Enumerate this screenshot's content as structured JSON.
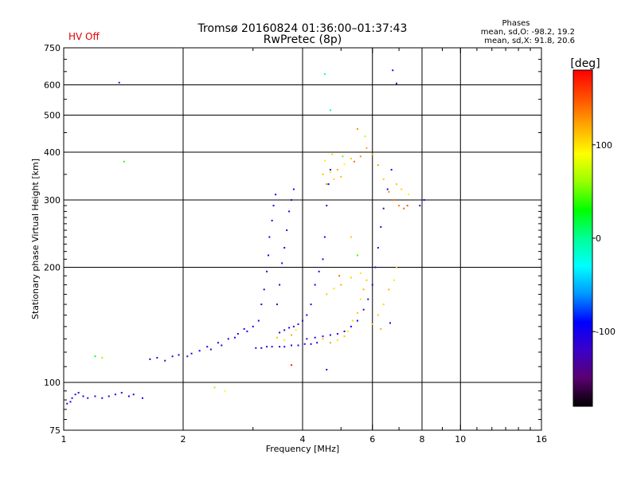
{
  "chart_data": {
    "type": "scatter",
    "title": "Tromsø 20160824 01:36:00–01:37:43",
    "subtitle": "RwPretec (8p)",
    "status_text": "HV Off",
    "status_color": "#e00000",
    "stats": {
      "heading": "Phases",
      "line1": "mean, sd,O: -98.2, 19.2",
      "line2": "mean, sd,X:  91.8, 20.6"
    },
    "xlabel": "Frequency [MHz]",
    "ylabel": "Stationary phase Virtual Height [km]",
    "x_scale": "log",
    "y_scale": "log",
    "xlim": [
      1,
      16
    ],
    "ylim": [
      75,
      750
    ],
    "grid": true,
    "x_ticks": [
      1,
      2,
      4,
      6,
      8,
      10,
      16
    ],
    "y_ticks": [
      75,
      100,
      200,
      300,
      400,
      500,
      600,
      750
    ],
    "colorbar": {
      "label": "[deg]",
      "range": [
        -180,
        180
      ],
      "ticks": [
        100,
        0,
        -100
      ],
      "colormap": [
        "#000000",
        "#5a0070",
        "#3c00c8",
        "#0000ff",
        "#0096ff",
        "#00ffff",
        "#00ff96",
        "#00ff00",
        "#96ff00",
        "#ffff00",
        "#ffaa00",
        "#ff5000",
        "#ff0000"
      ]
    },
    "points": [
      [
        1.02,
        88,
        -110
      ],
      [
        1.04,
        89,
        -100
      ],
      [
        1.05,
        91,
        -105
      ],
      [
        1.07,
        93,
        -120
      ],
      [
        1.09,
        94,
        -115
      ],
      [
        1.12,
        92,
        -95
      ],
      [
        1.15,
        91,
        -108
      ],
      [
        1.2,
        92,
        -112
      ],
      [
        1.25,
        91,
        -100
      ],
      [
        1.3,
        92,
        -118
      ],
      [
        1.35,
        93,
        -105
      ],
      [
        1.4,
        94,
        -110
      ],
      [
        1.46,
        92,
        -95
      ],
      [
        1.5,
        93,
        -120
      ],
      [
        1.58,
        91,
        -102
      ],
      [
        1.2,
        117,
        20
      ],
      [
        1.25,
        116,
        60
      ],
      [
        1.38,
        608,
        -110
      ],
      [
        1.42,
        378,
        40
      ],
      [
        1.65,
        115,
        -110
      ],
      [
        1.72,
        116,
        -100
      ],
      [
        1.8,
        114,
        -115
      ],
      [
        1.88,
        117,
        -105
      ],
      [
        1.95,
        118,
        -98
      ],
      [
        2.05,
        117,
        -112
      ],
      [
        2.1,
        119,
        -108
      ],
      [
        2.2,
        121,
        -100
      ],
      [
        2.3,
        124,
        -95
      ],
      [
        2.35,
        122,
        -115
      ],
      [
        2.45,
        127,
        -105
      ],
      [
        2.5,
        125,
        -110
      ],
      [
        2.6,
        130,
        -100
      ],
      [
        2.7,
        131,
        -90
      ],
      [
        2.75,
        134,
        -120
      ],
      [
        2.85,
        138,
        -105
      ],
      [
        2.9,
        136,
        -100
      ],
      [
        3.0,
        140,
        -95
      ],
      [
        3.05,
        123,
        -115
      ],
      [
        3.15,
        123,
        -110
      ],
      [
        3.25,
        124,
        -120
      ],
      [
        3.35,
        124,
        -105
      ],
      [
        3.5,
        124,
        -112
      ],
      [
        3.6,
        124,
        -108
      ],
      [
        3.75,
        125,
        -110
      ],
      [
        3.9,
        125,
        -100
      ],
      [
        4.05,
        126,
        -115
      ],
      [
        4.2,
        126,
        -112
      ],
      [
        4.35,
        127,
        -105
      ],
      [
        2.4,
        97,
        60
      ],
      [
        2.55,
        95,
        90
      ],
      [
        3.75,
        111,
        170
      ],
      [
        4.6,
        108,
        -110
      ],
      [
        3.1,
        145,
        -100
      ],
      [
        3.15,
        160,
        -105
      ],
      [
        3.2,
        175,
        -110
      ],
      [
        3.25,
        195,
        -120
      ],
      [
        3.28,
        215,
        -95
      ],
      [
        3.3,
        240,
        -110
      ],
      [
        3.35,
        265,
        -105
      ],
      [
        3.38,
        290,
        -112
      ],
      [
        3.42,
        310,
        -100
      ],
      [
        3.45,
        160,
        -115
      ],
      [
        3.5,
        180,
        -108
      ],
      [
        3.55,
        205,
        -105
      ],
      [
        3.6,
        225,
        -95
      ],
      [
        3.65,
        250,
        -110
      ],
      [
        3.7,
        280,
        -102
      ],
      [
        3.75,
        300,
        -115
      ],
      [
        3.8,
        320,
        -108
      ],
      [
        3.5,
        135,
        -110
      ],
      [
        3.6,
        137,
        -105
      ],
      [
        3.7,
        139,
        -100
      ],
      [
        3.8,
        140,
        -115
      ],
      [
        3.9,
        142,
        -108
      ],
      [
        4.0,
        145,
        -110
      ],
      [
        4.1,
        150,
        -100
      ],
      [
        4.2,
        160,
        -105
      ],
      [
        4.3,
        180,
        -95
      ],
      [
        4.4,
        195,
        -110
      ],
      [
        4.5,
        210,
        -112
      ],
      [
        4.55,
        240,
        -105
      ],
      [
        4.6,
        290,
        -110
      ],
      [
        4.65,
        330,
        -95
      ],
      [
        4.7,
        360,
        -108
      ],
      [
        4.1,
        130,
        -112
      ],
      [
        4.3,
        131,
        -105
      ],
      [
        4.5,
        132,
        -110
      ],
      [
        4.7,
        133,
        -100
      ],
      [
        4.9,
        134,
        -108
      ],
      [
        5.1,
        136,
        -112
      ],
      [
        5.3,
        140,
        -105
      ],
      [
        5.5,
        145,
        -100
      ],
      [
        5.7,
        155,
        -110
      ],
      [
        5.85,
        165,
        -108
      ],
      [
        6.0,
        180,
        -105
      ],
      [
        6.1,
        200,
        -100
      ],
      [
        6.2,
        225,
        -112
      ],
      [
        6.3,
        255,
        -110
      ],
      [
        6.4,
        285,
        -105
      ],
      [
        6.55,
        320,
        -98
      ],
      [
        6.7,
        360,
        -108
      ],
      [
        3.45,
        131,
        110
      ],
      [
        3.6,
        129,
        100
      ],
      [
        3.75,
        133,
        120
      ],
      [
        3.85,
        137,
        95
      ],
      [
        4.5,
        130,
        110
      ],
      [
        4.7,
        127,
        120
      ],
      [
        4.9,
        129,
        100
      ],
      [
        5.1,
        132,
        110
      ],
      [
        5.2,
        136,
        95
      ],
      [
        5.35,
        145,
        105
      ],
      [
        5.5,
        152,
        112
      ],
      [
        5.6,
        165,
        100
      ],
      [
        5.7,
        175,
        118
      ],
      [
        5.8,
        185,
        108
      ],
      [
        4.6,
        170,
        110
      ],
      [
        4.8,
        176,
        100
      ],
      [
        5.0,
        180,
        120
      ],
      [
        5.3,
        188,
        105
      ],
      [
        5.6,
        193,
        98
      ],
      [
        6.2,
        150,
        110
      ],
      [
        6.4,
        160,
        105
      ],
      [
        6.6,
        175,
        115
      ],
      [
        6.8,
        185,
        100
      ],
      [
        6.9,
        200,
        110
      ],
      [
        6.3,
        138,
        120
      ],
      [
        6.0,
        142,
        108
      ],
      [
        4.5,
        350,
        110
      ],
      [
        4.7,
        355,
        100
      ],
      [
        4.9,
        360,
        120
      ],
      [
        5.1,
        372,
        95
      ],
      [
        5.3,
        385,
        110
      ],
      [
        4.6,
        330,
        125
      ],
      [
        4.8,
        340,
        105
      ],
      [
        5.0,
        345,
        115
      ],
      [
        4.55,
        380,
        80
      ],
      [
        4.75,
        395,
        60
      ],
      [
        5.05,
        390,
        50
      ],
      [
        5.4,
        378,
        140
      ],
      [
        5.6,
        390,
        130
      ],
      [
        5.8,
        410,
        120
      ],
      [
        6.0,
        395,
        115
      ],
      [
        6.2,
        370,
        125
      ],
      [
        6.4,
        340,
        110
      ],
      [
        6.6,
        315,
        130
      ],
      [
        6.8,
        300,
        140
      ],
      [
        7.0,
        290,
        135
      ],
      [
        7.2,
        285,
        145
      ],
      [
        7.35,
        290,
        150
      ],
      [
        6.9,
        330,
        110
      ],
      [
        7.1,
        320,
        105
      ],
      [
        7.4,
        310,
        95
      ],
      [
        5.5,
        460,
        130
      ],
      [
        5.75,
        440,
        70
      ],
      [
        4.55,
        640,
        -10
      ],
      [
        4.7,
        515,
        -5
      ],
      [
        6.75,
        655,
        -105
      ],
      [
        6.9,
        605,
        -110
      ],
      [
        7.9,
        290,
        -110
      ],
      [
        8.1,
        300,
        -112
      ],
      [
        5.3,
        240,
        110
      ],
      [
        5.5,
        215,
        40
      ],
      [
        4.95,
        190,
        140
      ],
      [
        6.65,
        143,
        -105
      ]
    ]
  }
}
